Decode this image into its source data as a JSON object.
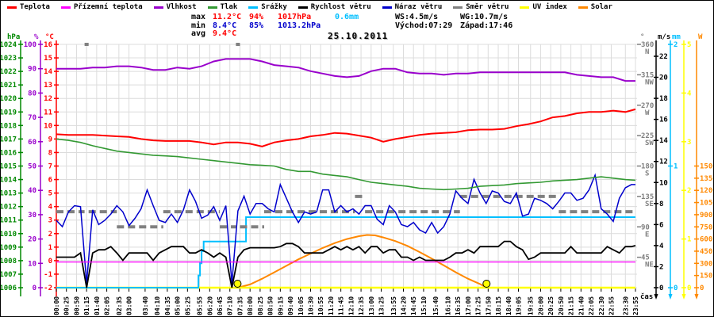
{
  "legend": {
    "items": [
      {
        "label": "Teplota",
        "color": "#ff0000"
      },
      {
        "label": "Přízemní teplota",
        "color": "#ff00ff"
      },
      {
        "label": "Vlhkost",
        "color": "#9900cc"
      },
      {
        "label": "Tlak",
        "color": "#339933"
      },
      {
        "label": "Srážky",
        "color": "#00bfff"
      },
      {
        "label": "Rychlost větru",
        "color": "#000000"
      },
      {
        "label": "Náraz větru",
        "color": "#0000cc"
      },
      {
        "label": "Směr větru",
        "color": "#808080"
      },
      {
        "label": "UV index",
        "color": "#ffff00"
      },
      {
        "label": "Solar",
        "color": "#ff8800"
      }
    ]
  },
  "stats": {
    "max_label": "max",
    "max_temp": "11.2°C",
    "max_hum": "94%",
    "max_press": "1017hPa",
    "rain_total": "0.6mm",
    "min_label": "min",
    "min_temp": "8.4°C",
    "min_hum": "85%",
    "min_press": "1013.2hPa",
    "avg_label": "avg",
    "avg_temp": "9.4°C",
    "ws": "WS:4.5m/s",
    "wg": "WG:10.7m/s",
    "sunrise": "Východ:07:29",
    "sunset": "Západ:17:46"
  },
  "date": "25.10.2011",
  "axes": {
    "time": {
      "unit_label": "čas",
      "labels": [
        "00:00",
        "00:25",
        "00:50",
        "01:15",
        "01:40",
        "02:05",
        "02:35",
        "03:00",
        "03:40",
        "04:10",
        "04:35",
        "05:00",
        "05:25",
        "05:55",
        "06:20",
        "06:45",
        "07:10",
        "07:35",
        "08:00",
        "08:25",
        "08:50",
        "09:15",
        "09:40",
        "10:05",
        "10:30",
        "10:55",
        "11:20",
        "11:45",
        "12:10",
        "12:35",
        "13:00",
        "13:25",
        "13:55",
        "14:20",
        "14:45",
        "15:10",
        "15:40",
        "16:10",
        "16:35",
        "17:00",
        "17:25",
        "17:50",
        "18:15",
        "18:40",
        "19:05",
        "19:35",
        "20:00",
        "20:25",
        "20:50",
        "21:15",
        "21:40",
        "22:05",
        "22:30",
        "22:55",
        "23:30",
        "23:55"
      ]
    },
    "pressure": {
      "header": "hPa",
      "color": "#008800",
      "min": 1006,
      "max": 1024,
      "ticks": [
        1006,
        1007,
        1008,
        1009,
        1010,
        1011,
        1012,
        1013,
        1014,
        1015,
        1016,
        1017,
        1018,
        1019,
        1020,
        1021,
        1022,
        1023,
        1024
      ]
    },
    "humidity": {
      "header": "%",
      "color": "#9900cc",
      "min": 0,
      "max": 100,
      "ticks": [
        0,
        10,
        20,
        30,
        40,
        50,
        60,
        70,
        80,
        90,
        100
      ]
    },
    "temperature": {
      "header": "°C",
      "color": "#ff0000",
      "min": -2,
      "max": 16,
      "ticks": [
        -2,
        -1,
        0,
        1,
        2,
        3,
        4,
        5,
        6,
        7,
        8,
        9,
        10,
        11,
        12,
        13,
        14,
        15,
        16
      ]
    },
    "direction": {
      "header": "°",
      "color": "#808080",
      "min": 0,
      "max": 360,
      "ticks": [
        [
          360,
          "N"
        ],
        [
          315,
          "NW"
        ],
        [
          270,
          "W"
        ],
        [
          225,
          "SW"
        ],
        [
          180,
          "S"
        ],
        [
          135,
          "SE"
        ],
        [
          90,
          "E"
        ],
        [
          45,
          "NE"
        ]
      ]
    },
    "wind": {
      "header": "m/s",
      "color": "#000000",
      "min": 0,
      "max": 23.13,
      "ticks": [
        0,
        2,
        4,
        6,
        8,
        10,
        12,
        14,
        16,
        18,
        20,
        22
      ]
    },
    "rain": {
      "header": "mm",
      "color": "#00bfff",
      "min": 0,
      "max": 2,
      "ticks": [
        0,
        1,
        2
      ]
    },
    "uv": {
      "header": "",
      "color": "#ffff00",
      "min": 0,
      "max": 5,
      "ticks": [
        0,
        1,
        2,
        3,
        4,
        5
      ]
    },
    "solar": {
      "header": "W",
      "color": "#ff8800",
      "min": 0,
      "max": 3000,
      "ticks": [
        0,
        150,
        300,
        450,
        600,
        750,
        900,
        1050,
        1200,
        1350,
        1500
      ]
    }
  },
  "chart_data": {
    "type": "line",
    "title": "25.10.2011",
    "x_unit": "minutes_of_day",
    "x_range": [
      0,
      1435
    ],
    "grid": true,
    "series": [
      {
        "name": "temperature",
        "unit": "°C",
        "axis": "temperature",
        "color": "#ff0000",
        "width": 2,
        "step_min": 30,
        "values": [
          9.35,
          9.3,
          9.3,
          9.3,
          9.25,
          9.2,
          9.15,
          9.0,
          8.9,
          8.85,
          8.85,
          8.85,
          8.75,
          8.6,
          8.75,
          8.75,
          8.65,
          8.45,
          8.75,
          8.9,
          9.0,
          9.2,
          9.3,
          9.45,
          9.4,
          9.25,
          9.1,
          8.8,
          9.0,
          9.15,
          9.3,
          9.4,
          9.45,
          9.5,
          9.65,
          9.7,
          9.7,
          9.75,
          9.95,
          10.1,
          10.3,
          10.6,
          10.7,
          10.9,
          11.0,
          11.0,
          11.1,
          11.0,
          11.2
        ]
      },
      {
        "name": "humidity",
        "unit": "%",
        "axis": "humidity",
        "color": "#9900cc",
        "width": 2,
        "step_min": 30,
        "values": [
          90,
          90,
          90,
          90.5,
          90.5,
          91,
          91,
          90.5,
          89.5,
          89.5,
          90.5,
          90,
          91,
          93,
          94,
          94,
          94,
          93,
          91.5,
          91,
          90.5,
          89,
          88,
          87,
          86.5,
          87,
          89,
          90,
          90,
          88.5,
          88,
          88,
          87.5,
          88,
          88,
          88.5,
          88.5,
          88.5,
          88.5,
          88.5,
          88.5,
          88.5,
          88.5,
          87.5,
          87,
          86.5,
          86.5,
          85,
          85
        ]
      },
      {
        "name": "pressure",
        "unit": "hPa",
        "axis": "pressure",
        "color": "#339933",
        "width": 1.6,
        "step_min": 30,
        "values": [
          1017.0,
          1016.9,
          1016.75,
          1016.5,
          1016.3,
          1016.1,
          1016.0,
          1015.9,
          1015.8,
          1015.75,
          1015.7,
          1015.6,
          1015.5,
          1015.4,
          1015.3,
          1015.2,
          1015.1,
          1015.05,
          1015.0,
          1014.75,
          1014.6,
          1014.6,
          1014.4,
          1014.3,
          1014.2,
          1014.0,
          1013.8,
          1013.7,
          1013.6,
          1013.5,
          1013.35,
          1013.3,
          1013.25,
          1013.3,
          1013.35,
          1013.5,
          1013.55,
          1013.6,
          1013.7,
          1013.75,
          1013.8,
          1013.9,
          1013.95,
          1014.0,
          1014.1,
          1014.2,
          1014.1,
          1014.0,
          1013.95
        ]
      },
      {
        "name": "wind_speed",
        "unit": "m/s",
        "axis": "wind",
        "color": "#000000",
        "width": 1.8,
        "step_min": 15,
        "values": [
          2.9,
          2.9,
          2.9,
          2.9,
          3.3,
          0.0,
          3.3,
          3.6,
          3.6,
          3.9,
          3.3,
          2.6,
          3.3,
          3.3,
          3.3,
          3.3,
          2.6,
          3.3,
          3.6,
          3.9,
          3.9,
          3.9,
          3.3,
          3.3,
          3.6,
          3.3,
          2.9,
          3.3,
          2.9,
          0.0,
          2.9,
          3.6,
          3.8,
          3.8,
          3.8,
          3.8,
          3.8,
          3.9,
          4.2,
          4.2,
          3.9,
          3.3,
          3.3,
          3.3,
          3.3,
          3.6,
          3.9,
          3.6,
          3.9,
          3.6,
          3.9,
          3.3,
          3.9,
          3.9,
          3.3,
          3.6,
          3.6,
          2.9,
          2.9,
          2.6,
          2.9,
          2.6,
          2.6,
          2.6,
          2.6,
          2.9,
          3.3,
          3.3,
          3.6,
          3.3,
          3.9,
          3.9,
          3.9,
          3.9,
          4.4,
          4.4,
          3.9,
          3.6,
          2.7,
          2.9,
          3.3,
          3.3,
          3.3,
          3.3,
          3.3,
          3.9,
          3.3,
          3.3,
          3.3,
          3.3,
          3.3,
          3.9,
          3.6,
          3.3,
          3.9,
          3.9,
          4.0
        ]
      },
      {
        "name": "wind_gust",
        "unit": "m/s",
        "axis": "wind",
        "color": "#0000cc",
        "width": 1.5,
        "step_min": 15,
        "values": [
          6.4,
          5.8,
          7.2,
          7.8,
          7.7,
          0.4,
          7.4,
          6.0,
          6.4,
          7.0,
          7.8,
          7.2,
          5.9,
          6.6,
          7.5,
          9.3,
          7.8,
          6.4,
          6.2,
          7.0,
          6.2,
          7.4,
          9.3,
          8.2,
          6.6,
          6.9,
          7.7,
          6.4,
          7.8,
          0.4,
          7.3,
          8.7,
          7.0,
          8.0,
          8.0,
          7.5,
          7.2,
          9.8,
          8.5,
          7.2,
          6.2,
          7.2,
          7.0,
          7.2,
          9.3,
          9.3,
          7.2,
          7.8,
          7.2,
          7.5,
          7.0,
          7.8,
          7.8,
          6.5,
          6.0,
          7.8,
          7.2,
          6.0,
          5.8,
          6.2,
          5.5,
          5.2,
          6.2,
          5.2,
          5.8,
          7.0,
          9.2,
          8.5,
          8.0,
          10.3,
          9.0,
          8.0,
          9.2,
          9.0,
          8.2,
          8.0,
          9.0,
          6.8,
          7.0,
          8.5,
          8.3,
          8.0,
          7.5,
          8.2,
          9.0,
          9.0,
          8.3,
          8.5,
          9.3,
          10.7,
          7.5,
          7.0,
          6.3,
          8.5,
          9.5,
          9.8,
          9.8
        ]
      },
      {
        "name": "ground_temperature",
        "unit": "°C",
        "axis": "temperature",
        "color": "#ff00ff",
        "width": 1.3,
        "points": [
          [
            0,
            -0.1
          ],
          [
            1435,
            -0.1
          ]
        ]
      },
      {
        "name": "uv_index",
        "unit": "",
        "axis": "uv",
        "color": "#ffff00",
        "width": 2.5,
        "points": [
          [
            0,
            0
          ],
          [
            1435,
            0
          ]
        ]
      },
      {
        "name": "rain_cumulative",
        "unit": "mm",
        "axis": "rain",
        "color": "#00bfff",
        "width": 2,
        "step_after": true,
        "points": [
          [
            0,
            0
          ],
          [
            348,
            0
          ],
          [
            352,
            0.1
          ],
          [
            356,
            0.2
          ],
          [
            360,
            0.3
          ],
          [
            365,
            0.38
          ],
          [
            466,
            0.38
          ],
          [
            470,
            0.58
          ],
          [
            1435,
            0.58
          ]
        ]
      },
      {
        "name": "solar",
        "unit": "W",
        "axis": "solar",
        "color": "#ff8800",
        "width": 2,
        "points": [
          [
            0,
            0
          ],
          [
            450,
            0
          ],
          [
            480,
            40
          ],
          [
            510,
            110
          ],
          [
            540,
            190
          ],
          [
            570,
            270
          ],
          [
            600,
            350
          ],
          [
            630,
            420
          ],
          [
            660,
            490
          ],
          [
            690,
            550
          ],
          [
            720,
            600
          ],
          [
            750,
            635
          ],
          [
            770,
            650
          ],
          [
            790,
            645
          ],
          [
            810,
            620
          ],
          [
            840,
            575
          ],
          [
            870,
            515
          ],
          [
            900,
            440
          ],
          [
            930,
            360
          ],
          [
            960,
            275
          ],
          [
            990,
            190
          ],
          [
            1020,
            110
          ],
          [
            1050,
            45
          ],
          [
            1066,
            0
          ],
          [
            1435,
            0
          ]
        ]
      },
      {
        "name": "wind_direction",
        "unit": "°",
        "axis": "direction",
        "color": "#808080",
        "width": 4,
        "dashed": true,
        "segments": [
          [
            0,
            70,
            112.5
          ],
          [
            70,
            80,
            360
          ],
          [
            80,
            150,
            112.5
          ],
          [
            150,
            265,
            90
          ],
          [
            265,
            405,
            112.5
          ],
          [
            405,
            445,
            90
          ],
          [
            445,
            455,
            360
          ],
          [
            455,
            515,
            90
          ],
          [
            515,
            740,
            112.5
          ],
          [
            740,
            765,
            135
          ],
          [
            765,
            1000,
            112.5
          ],
          [
            1000,
            1245,
            135
          ],
          [
            1245,
            1435,
            112.5
          ]
        ]
      }
    ],
    "sun_markers_min": [
      449,
      1066
    ]
  }
}
